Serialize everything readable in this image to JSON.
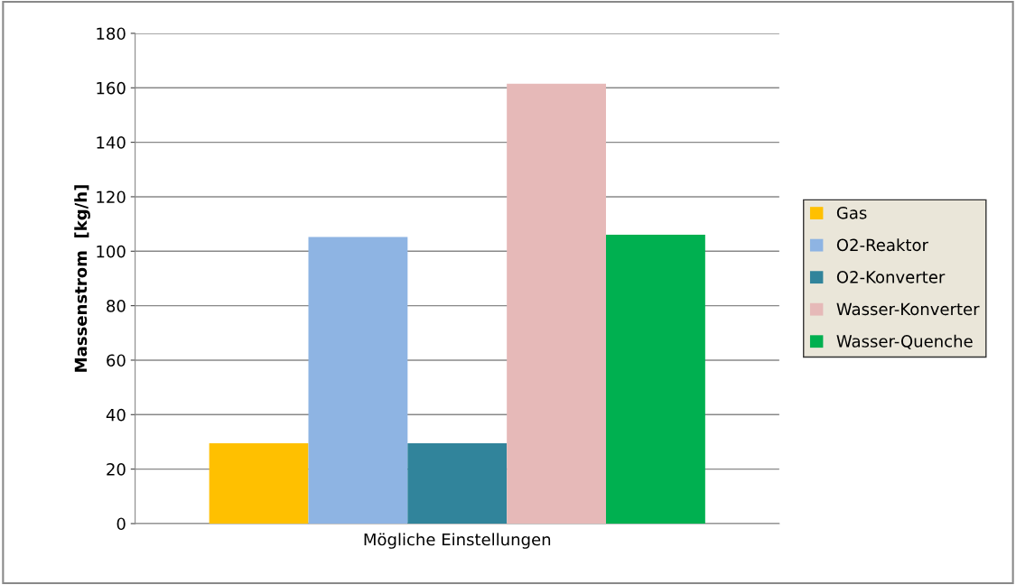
{
  "chart_data": {
    "type": "bar",
    "xlabel": "Mögliche Einstellungen",
    "ylabel": "Massenstrom  [kg/h]",
    "categories": [
      null
    ],
    "series": [
      {
        "name": "Gas",
        "color": "#ffc000",
        "values": [
          29.5
        ]
      },
      {
        "name": "O2-Reaktor",
        "color": "#8eb4e3",
        "values": [
          105.2
        ]
      },
      {
        "name": "O2-Konverter",
        "color": "#31849b",
        "values": [
          29.5
        ]
      },
      {
        "name": "Wasser-Konverter",
        "color": "#e6b9b8",
        "values": [
          161.5
        ]
      },
      {
        "name": "Wasser-Quenche",
        "color": "#00b050",
        "values": [
          106.1
        ]
      }
    ],
    "ylim": [
      0,
      180
    ],
    "yticks": [
      0,
      20,
      40,
      60,
      80,
      100,
      120,
      140,
      160,
      180
    ],
    "grid": "y",
    "legend": "right"
  }
}
